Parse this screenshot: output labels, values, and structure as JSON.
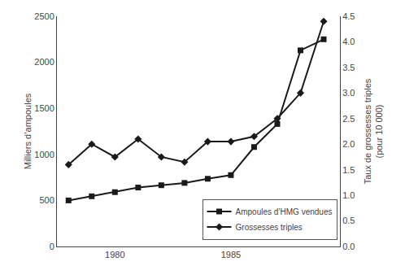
{
  "chart_data": {
    "type": "line",
    "x": [
      1978,
      1979,
      1980,
      1981,
      1982,
      1983,
      1984,
      1985,
      1986,
      1987,
      1988,
      1989
    ],
    "series": [
      {
        "name": "Ampoules d’HMG vendues",
        "color": "#1a1a1a",
        "marker": "square",
        "values": [
          500,
          545,
          590,
          640,
          665,
          690,
          735,
          775,
          1080,
          1330,
          2130,
          2250
        ]
      },
      {
        "name": "Grossesses triples",
        "color": "#1a1a1a",
        "marker": "diamond",
        "axis": "y2",
        "values": [
          1.6,
          2.0,
          1.75,
          2.1,
          1.75,
          1.65,
          2.05,
          2.05,
          2.15,
          2.5,
          3.0,
          4.4
        ]
      }
    ],
    "ylabel": "Milliers d’ampoules",
    "y2label": "Taux de grossesses triples\n(pour 10 000)",
    "xlim": [
      1977.5,
      1989.7
    ],
    "xticks": [
      1980,
      1985
    ],
    "ylim": [
      0,
      2500
    ],
    "yticks": [
      0,
      500,
      1000,
      1500,
      2000,
      2500
    ],
    "y2lim": [
      0,
      4.5
    ],
    "y2ticks": [
      {
        "value": 0,
        "label": "0.0"
      },
      0.5,
      {
        "value": 1,
        "label": "1.0"
      },
      1.5,
      {
        "value": 2,
        "label": "2.0"
      },
      2.5,
      {
        "value": 3,
        "label": "3.0"
      },
      3.5,
      {
        "value": 4,
        "label": "4.0"
      },
      4.5
    ],
    "grid": false,
    "legend": "lower right"
  }
}
